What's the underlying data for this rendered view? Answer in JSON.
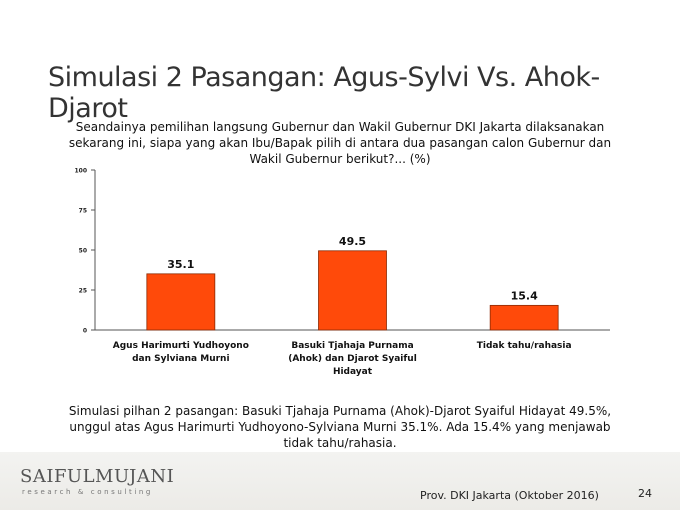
{
  "slide": {
    "title": "Simulasi 2 Pasangan: Agus-Sylvi Vs. Ahok-Djarot",
    "question": "Seandainya pemilihan langsung Gubernur dan Wakil Gubernur DKI Jakarta dilaksanakan sekarang ini, siapa yang akan Ibu/Bapak pilih di antara dua pasangan calon Gubernur dan Wakil Gubernur berikut?... (%)",
    "summary": "Simulasi pilhan 2 pasangan: Basuki Tjahaja Purnama (Ahok)-Djarot Syaiful Hidayat 49.5%, unggul atas Agus Harimurti Yudhoyono-Sylviana Murni 35.1%.  Ada 15.4% yang menjawab tidak tahu/rahasia.",
    "logo_main": "SAIFULMUJANI",
    "logo_sub": "research & consulting",
    "source": "Prov. DKI Jakarta (Oktober 2016)",
    "page_number": "24"
  },
  "chart_data": {
    "type": "bar",
    "categories": [
      [
        "Agus Harimurti Yudhoyono",
        "dan Sylviana Murni"
      ],
      [
        "Basuki Tjahaja Purnama",
        "(Ahok) dan Djarot Syaiful",
        "Hidayat"
      ],
      [
        "Tidak tahu/rahasia"
      ]
    ],
    "values": [
      35.1,
      49.5,
      15.4
    ],
    "data_labels": [
      "35.1",
      "49.5",
      "15.4"
    ],
    "ylim": [
      0,
      100
    ],
    "yticks": [
      0,
      25,
      50,
      75,
      100
    ],
    "bar_color": "#ff4a0a",
    "grid": false,
    "legend": "none"
  }
}
